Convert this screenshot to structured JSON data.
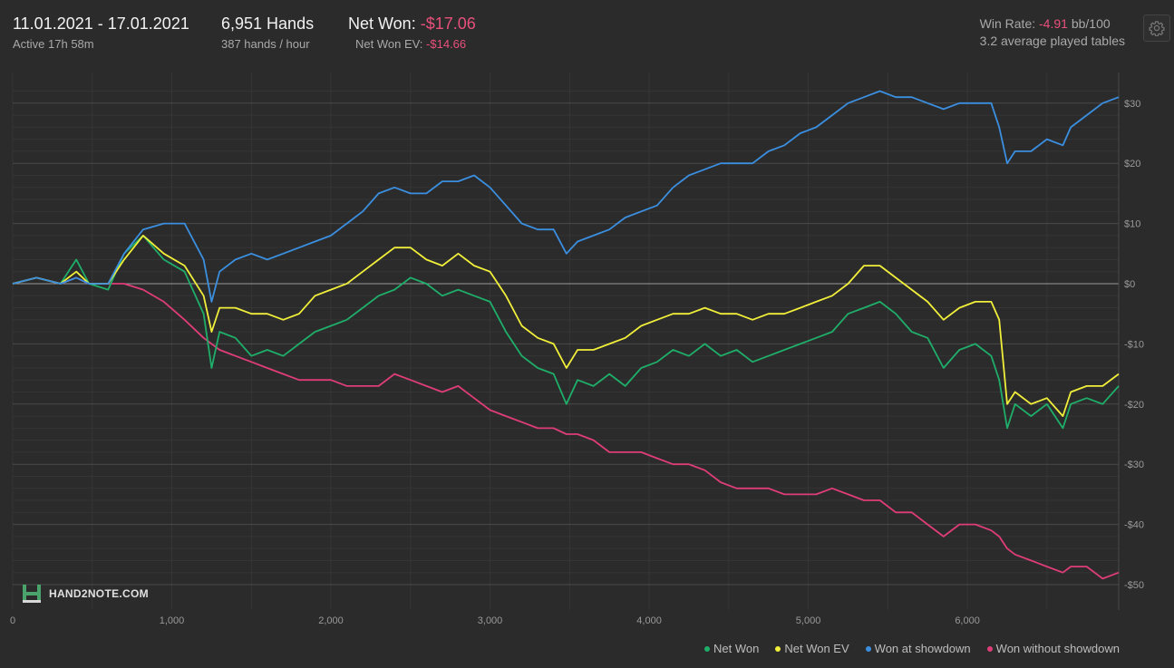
{
  "header": {
    "date_range": "11.01.2021 - 17.01.2021",
    "active_time": "Active 17h 58m",
    "hands": "6,951 Hands",
    "hands_rate": "387 hands / hour",
    "net_won_label": "Net Won: ",
    "net_won_value": "-$17.06",
    "net_won_ev_label": "Net Won  EV: ",
    "net_won_ev_value": "-$14.66",
    "win_rate_label": "Win Rate: ",
    "win_rate_value": "-4.91",
    "win_rate_unit": " bb/100",
    "tables_text": "3.2 average played tables"
  },
  "settings_icon": "gear-icon",
  "logo_text": "HAND2NOTE.COM",
  "colors": {
    "net_won": "#1fae6a",
    "net_won_ev": "#f1ef3a",
    "won_showdown": "#3b8fe0",
    "won_without_showdown": "#df3d78",
    "negative": "#e8507c"
  },
  "chart_data": {
    "type": "line",
    "xlim": [
      0,
      6951
    ],
    "ylim": [
      -50,
      33
    ],
    "x_ticks": [
      0,
      1000,
      2000,
      3000,
      4000,
      5000,
      6000
    ],
    "x_tick_labels": [
      "0",
      "1,000",
      "2,000",
      "3,000",
      "4,000",
      "5,000",
      "6,000"
    ],
    "y_ticks": [
      30,
      20,
      10,
      0,
      -10,
      -20,
      -30,
      -40,
      -50
    ],
    "y_tick_labels": [
      "$30",
      "$20",
      "$10",
      "$0",
      "-$10",
      "-$20",
      "-$30",
      "-$40",
      "-$50"
    ],
    "grid": true,
    "legend_position": "bottom-right",
    "series": [
      {
        "name": "Net Won",
        "color": "#1fae6a",
        "points": [
          [
            0,
            0
          ],
          [
            150,
            1
          ],
          [
            300,
            0
          ],
          [
            400,
            4
          ],
          [
            480,
            0
          ],
          [
            600,
            -1
          ],
          [
            700,
            5
          ],
          [
            820,
            8
          ],
          [
            950,
            4
          ],
          [
            1080,
            2
          ],
          [
            1200,
            -5
          ],
          [
            1250,
            -14
          ],
          [
            1300,
            -8
          ],
          [
            1400,
            -9
          ],
          [
            1500,
            -12
          ],
          [
            1600,
            -11
          ],
          [
            1700,
            -12
          ],
          [
            1800,
            -10
          ],
          [
            1900,
            -8
          ],
          [
            2000,
            -7
          ],
          [
            2100,
            -6
          ],
          [
            2200,
            -4
          ],
          [
            2300,
            -2
          ],
          [
            2400,
            -1
          ],
          [
            2500,
            1
          ],
          [
            2600,
            0
          ],
          [
            2700,
            -2
          ],
          [
            2800,
            -1
          ],
          [
            2900,
            -2
          ],
          [
            3000,
            -3
          ],
          [
            3100,
            -8
          ],
          [
            3200,
            -12
          ],
          [
            3300,
            -14
          ],
          [
            3400,
            -15
          ],
          [
            3480,
            -20
          ],
          [
            3550,
            -16
          ],
          [
            3650,
            -17
          ],
          [
            3750,
            -15
          ],
          [
            3850,
            -17
          ],
          [
            3950,
            -14
          ],
          [
            4050,
            -13
          ],
          [
            4150,
            -11
          ],
          [
            4250,
            -12
          ],
          [
            4350,
            -10
          ],
          [
            4450,
            -12
          ],
          [
            4550,
            -11
          ],
          [
            4650,
            -13
          ],
          [
            4750,
            -12
          ],
          [
            4850,
            -11
          ],
          [
            4950,
            -10
          ],
          [
            5050,
            -9
          ],
          [
            5150,
            -8
          ],
          [
            5250,
            -5
          ],
          [
            5350,
            -4
          ],
          [
            5450,
            -3
          ],
          [
            5550,
            -5
          ],
          [
            5650,
            -8
          ],
          [
            5750,
            -9
          ],
          [
            5850,
            -14
          ],
          [
            5950,
            -11
          ],
          [
            6050,
            -10
          ],
          [
            6150,
            -12
          ],
          [
            6200,
            -16
          ],
          [
            6250,
            -24
          ],
          [
            6300,
            -20
          ],
          [
            6400,
            -22
          ],
          [
            6500,
            -20
          ],
          [
            6600,
            -24
          ],
          [
            6650,
            -20
          ],
          [
            6750,
            -19
          ],
          [
            6850,
            -20
          ],
          [
            6951,
            -17
          ]
        ]
      },
      {
        "name": "Net Won  EV",
        "color": "#f1ef3a",
        "points": [
          [
            0,
            0
          ],
          [
            150,
            1
          ],
          [
            300,
            0
          ],
          [
            400,
            2
          ],
          [
            480,
            0
          ],
          [
            600,
            0
          ],
          [
            700,
            4
          ],
          [
            820,
            8
          ],
          [
            950,
            5
          ],
          [
            1080,
            3
          ],
          [
            1200,
            -2
          ],
          [
            1250,
            -8
          ],
          [
            1300,
            -4
          ],
          [
            1400,
            -4
          ],
          [
            1500,
            -5
          ],
          [
            1600,
            -5
          ],
          [
            1700,
            -6
          ],
          [
            1800,
            -5
          ],
          [
            1900,
            -2
          ],
          [
            2000,
            -1
          ],
          [
            2100,
            0
          ],
          [
            2200,
            2
          ],
          [
            2300,
            4
          ],
          [
            2400,
            6
          ],
          [
            2500,
            6
          ],
          [
            2600,
            4
          ],
          [
            2700,
            3
          ],
          [
            2800,
            5
          ],
          [
            2900,
            3
          ],
          [
            3000,
            2
          ],
          [
            3100,
            -2
          ],
          [
            3200,
            -7
          ],
          [
            3300,
            -9
          ],
          [
            3400,
            -10
          ],
          [
            3480,
            -14
          ],
          [
            3550,
            -11
          ],
          [
            3650,
            -11
          ],
          [
            3750,
            -10
          ],
          [
            3850,
            -9
          ],
          [
            3950,
            -7
          ],
          [
            4050,
            -6
          ],
          [
            4150,
            -5
          ],
          [
            4250,
            -5
          ],
          [
            4350,
            -4
          ],
          [
            4450,
            -5
          ],
          [
            4550,
            -5
          ],
          [
            4650,
            -6
          ],
          [
            4750,
            -5
          ],
          [
            4850,
            -5
          ],
          [
            4950,
            -4
          ],
          [
            5050,
            -3
          ],
          [
            5150,
            -2
          ],
          [
            5250,
            0
          ],
          [
            5350,
            3
          ],
          [
            5450,
            3
          ],
          [
            5550,
            1
          ],
          [
            5650,
            -1
          ],
          [
            5750,
            -3
          ],
          [
            5850,
            -6
          ],
          [
            5950,
            -4
          ],
          [
            6050,
            -3
          ],
          [
            6150,
            -3
          ],
          [
            6200,
            -6
          ],
          [
            6250,
            -20
          ],
          [
            6300,
            -18
          ],
          [
            6400,
            -20
          ],
          [
            6500,
            -19
          ],
          [
            6600,
            -22
          ],
          [
            6650,
            -18
          ],
          [
            6750,
            -17
          ],
          [
            6850,
            -17
          ],
          [
            6951,
            -15
          ]
        ]
      },
      {
        "name": "Won at showdown",
        "color": "#3b8fe0",
        "points": [
          [
            0,
            0
          ],
          [
            150,
            1
          ],
          [
            300,
            0
          ],
          [
            400,
            1
          ],
          [
            480,
            0
          ],
          [
            600,
            0
          ],
          [
            700,
            5
          ],
          [
            820,
            9
          ],
          [
            950,
            10
          ],
          [
            1080,
            10
          ],
          [
            1200,
            4
          ],
          [
            1250,
            -3
          ],
          [
            1300,
            2
          ],
          [
            1400,
            4
          ],
          [
            1500,
            5
          ],
          [
            1600,
            4
          ],
          [
            1700,
            5
          ],
          [
            1800,
            6
          ],
          [
            1900,
            7
          ],
          [
            2000,
            8
          ],
          [
            2100,
            10
          ],
          [
            2200,
            12
          ],
          [
            2300,
            15
          ],
          [
            2400,
            16
          ],
          [
            2500,
            15
          ],
          [
            2600,
            15
          ],
          [
            2700,
            17
          ],
          [
            2800,
            17
          ],
          [
            2900,
            18
          ],
          [
            3000,
            16
          ],
          [
            3100,
            13
          ],
          [
            3200,
            10
          ],
          [
            3300,
            9
          ],
          [
            3400,
            9
          ],
          [
            3480,
            5
          ],
          [
            3550,
            7
          ],
          [
            3650,
            8
          ],
          [
            3750,
            9
          ],
          [
            3850,
            11
          ],
          [
            3950,
            12
          ],
          [
            4050,
            13
          ],
          [
            4150,
            16
          ],
          [
            4250,
            18
          ],
          [
            4350,
            19
          ],
          [
            4450,
            20
          ],
          [
            4550,
            20
          ],
          [
            4650,
            20
          ],
          [
            4750,
            22
          ],
          [
            4850,
            23
          ],
          [
            4950,
            25
          ],
          [
            5050,
            26
          ],
          [
            5150,
            28
          ],
          [
            5250,
            30
          ],
          [
            5350,
            31
          ],
          [
            5450,
            32
          ],
          [
            5550,
            31
          ],
          [
            5650,
            31
          ],
          [
            5750,
            30
          ],
          [
            5850,
            29
          ],
          [
            5950,
            30
          ],
          [
            6050,
            30
          ],
          [
            6150,
            30
          ],
          [
            6200,
            26
          ],
          [
            6250,
            20
          ],
          [
            6300,
            22
          ],
          [
            6400,
            22
          ],
          [
            6500,
            24
          ],
          [
            6600,
            23
          ],
          [
            6650,
            26
          ],
          [
            6750,
            28
          ],
          [
            6850,
            30
          ],
          [
            6951,
            31
          ]
        ]
      },
      {
        "name": "Won without showdown",
        "color": "#df3d78",
        "points": [
          [
            0,
            0
          ],
          [
            150,
            1
          ],
          [
            300,
            0
          ],
          [
            400,
            1
          ],
          [
            480,
            0
          ],
          [
            600,
            0
          ],
          [
            700,
            0
          ],
          [
            820,
            -1
          ],
          [
            950,
            -3
          ],
          [
            1080,
            -6
          ],
          [
            1200,
            -9
          ],
          [
            1250,
            -10
          ],
          [
            1300,
            -11
          ],
          [
            1400,
            -12
          ],
          [
            1500,
            -13
          ],
          [
            1600,
            -14
          ],
          [
            1700,
            -15
          ],
          [
            1800,
            -16
          ],
          [
            1900,
            -16
          ],
          [
            2000,
            -16
          ],
          [
            2100,
            -17
          ],
          [
            2200,
            -17
          ],
          [
            2300,
            -17
          ],
          [
            2400,
            -15
          ],
          [
            2500,
            -16
          ],
          [
            2600,
            -17
          ],
          [
            2700,
            -18
          ],
          [
            2800,
            -17
          ],
          [
            2900,
            -19
          ],
          [
            3000,
            -21
          ],
          [
            3100,
            -22
          ],
          [
            3200,
            -23
          ],
          [
            3300,
            -24
          ],
          [
            3400,
            -24
          ],
          [
            3480,
            -25
          ],
          [
            3550,
            -25
          ],
          [
            3650,
            -26
          ],
          [
            3750,
            -28
          ],
          [
            3850,
            -28
          ],
          [
            3950,
            -28
          ],
          [
            4050,
            -29
          ],
          [
            4150,
            -30
          ],
          [
            4250,
            -30
          ],
          [
            4350,
            -31
          ],
          [
            4450,
            -33
          ],
          [
            4550,
            -34
          ],
          [
            4650,
            -34
          ],
          [
            4750,
            -34
          ],
          [
            4850,
            -35
          ],
          [
            4950,
            -35
          ],
          [
            5050,
            -35
          ],
          [
            5150,
            -34
          ],
          [
            5250,
            -35
          ],
          [
            5350,
            -36
          ],
          [
            5450,
            -36
          ],
          [
            5550,
            -38
          ],
          [
            5650,
            -38
          ],
          [
            5750,
            -40
          ],
          [
            5850,
            -42
          ],
          [
            5950,
            -40
          ],
          [
            6050,
            -40
          ],
          [
            6150,
            -41
          ],
          [
            6200,
            -42
          ],
          [
            6250,
            -44
          ],
          [
            6300,
            -45
          ],
          [
            6400,
            -46
          ],
          [
            6500,
            -47
          ],
          [
            6600,
            -48
          ],
          [
            6650,
            -47
          ],
          [
            6750,
            -47
          ],
          [
            6850,
            -49
          ],
          [
            6951,
            -48
          ]
        ]
      }
    ]
  }
}
